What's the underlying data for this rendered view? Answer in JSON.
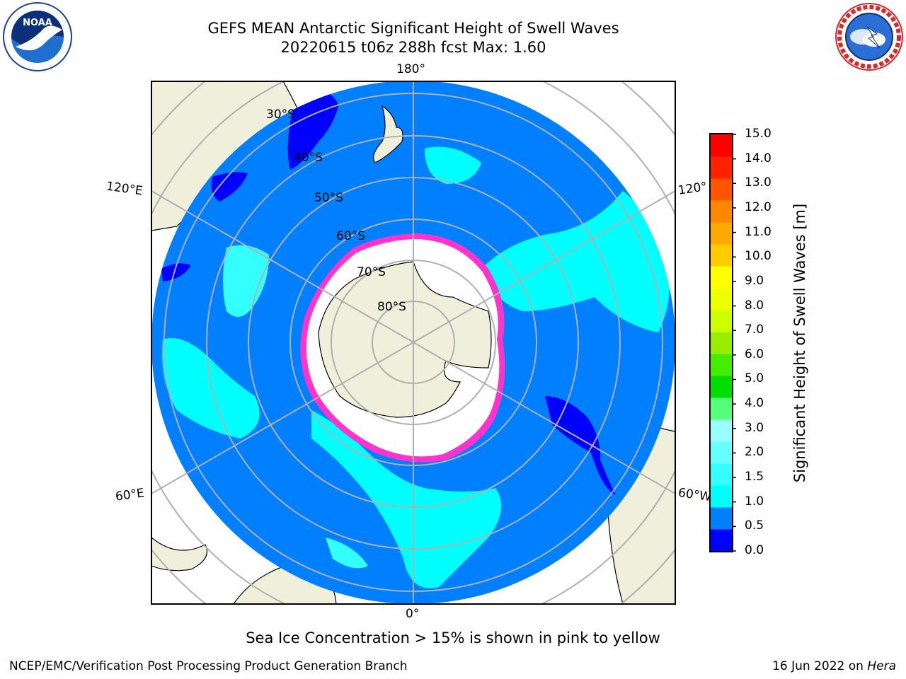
{
  "header": {
    "title_line1": "GEFS MEAN Antarctic Significant Height of Swell Waves",
    "title_line2": "20220615 t06z 288h fcst   Max: 1.60"
  },
  "logos": {
    "left": {
      "icon": "noaa-logo",
      "text": "NOAA",
      "ring_text": "NATIONAL OCEANIC AND ATMOSPHERIC ADMINISTRATION · U.S. DEPARTMENT OF COMMERCE"
    },
    "right": {
      "icon": "national-weather-service-logo",
      "ring_text": "NATIONAL WEATHER SERVICE"
    }
  },
  "map": {
    "longitude_labels": {
      "top": "180°",
      "bottom": "0°",
      "left_upper": "120°E",
      "left_lower": "60°E",
      "right_upper": "120°",
      "right_lower": "60°W"
    },
    "latitude_labels": [
      "30°S",
      "40°S",
      "50°S",
      "60°S",
      "70°S",
      "80°S"
    ],
    "colors": {
      "ocean_low": "#0080ff",
      "ocean_lowest": "#0000ff",
      "swell_mid": "#00ffff",
      "land": "#efefdb",
      "sea_ice": "#ffffff",
      "ice_edge": "#ff33cc",
      "grid": "#b0b0b0"
    }
  },
  "colorbar": {
    "title": "Significant Height of Swell Waves [m]",
    "ticks": [
      "0.0",
      "0.5",
      "1.0",
      "1.5",
      "2.0",
      "3.0",
      "4.0",
      "5.0",
      "6.0",
      "7.0",
      "8.0",
      "9.0",
      "10.0",
      "11.0",
      "12.0",
      "13.0",
      "14.0",
      "15.0"
    ],
    "colors": [
      "#0000ff",
      "#0080ff",
      "#00ffff",
      "#33ffff",
      "#66ffff",
      "#99ffff",
      "#55ff77",
      "#00dd00",
      "#44ee00",
      "#99ee00",
      "#ccff00",
      "#eeff00",
      "#ffff00",
      "#ffcc00",
      "#ffaa00",
      "#ff8800",
      "#ff5500",
      "#ff2200",
      "#ff0000"
    ]
  },
  "caption": "Sea Ice Concentration > 15% is shown in pink to yellow",
  "footer": {
    "left": "NCEP/EMC/Verification Post Processing Product Generation Branch",
    "right_prefix": "16 Jun 2022 on ",
    "right_machine": "Hera"
  }
}
